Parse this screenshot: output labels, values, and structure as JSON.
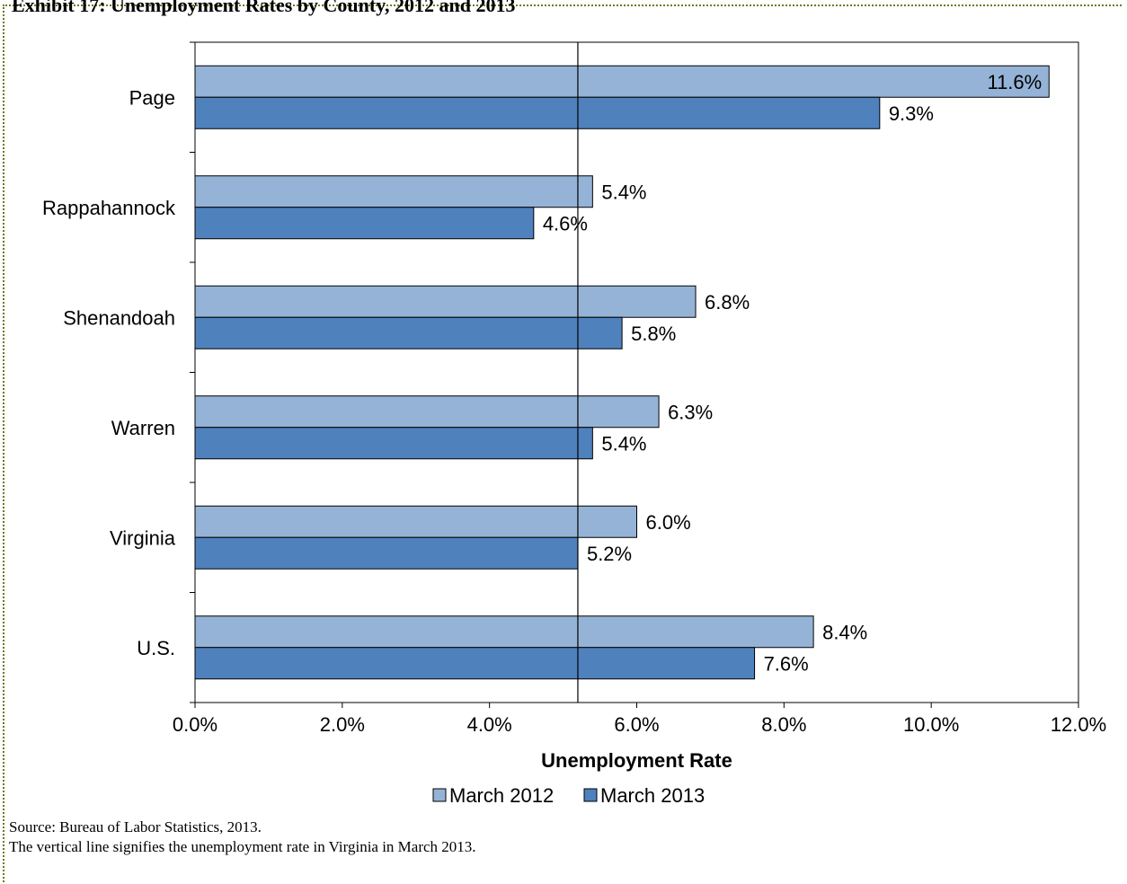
{
  "chart_data": {
    "type": "bar",
    "orientation": "horizontal",
    "title": "Exhibit 17: Unemployment Rates by County, 2012 and 2013",
    "categories": [
      "Page",
      "Rappahannock",
      "Shenandoah",
      "Warren",
      "Virginia",
      "U.S."
    ],
    "series": [
      {
        "name": "March 2012",
        "color": "#95b3d7",
        "values": [
          11.6,
          5.4,
          6.8,
          6.3,
          6.0,
          8.4
        ],
        "labels": [
          "11.6%",
          "5.4%",
          "6.8%",
          "6.3%",
          "6.0%",
          "8.4%"
        ]
      },
      {
        "name": "March 2013",
        "color": "#4f81bd",
        "values": [
          9.3,
          4.6,
          5.8,
          5.4,
          5.2,
          7.6
        ],
        "labels": [
          "9.3%",
          "4.6%",
          "5.8%",
          "5.4%",
          "5.2%",
          "7.6%"
        ]
      }
    ],
    "xlabel": "Unemployment Rate",
    "xlim": [
      0,
      12
    ],
    "xticks": [
      0,
      2,
      4,
      6,
      8,
      10,
      12
    ],
    "xtick_labels": [
      "0.0%",
      "2.0%",
      "4.0%",
      "6.0%",
      "8.0%",
      "10.0%",
      "12.0%"
    ],
    "reference_line": 5.2,
    "grid": false,
    "legend": "bottom"
  },
  "notes": {
    "source": "Source: Bureau of Labor Statistics, 2013.",
    "line_note": "The vertical line signifies the unemployment rate in Virginia in March 2013."
  }
}
